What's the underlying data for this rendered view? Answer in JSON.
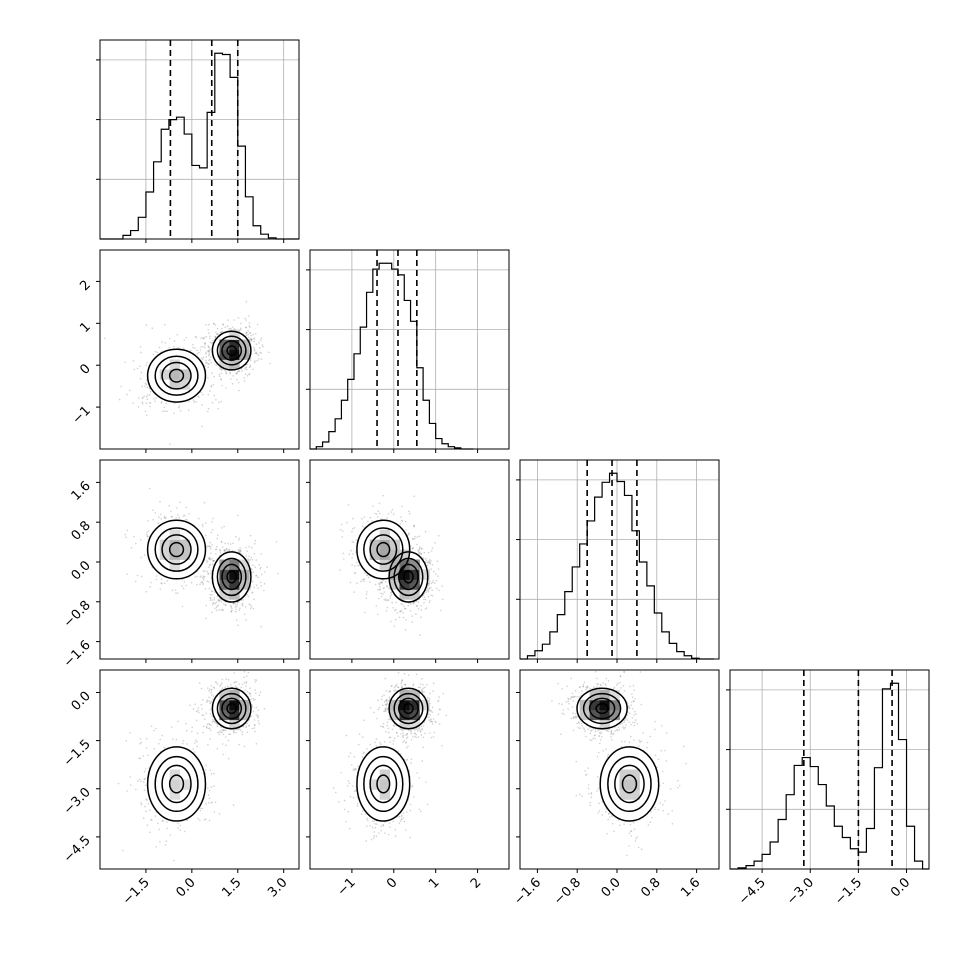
{
  "chart_data": {
    "type": "corner",
    "title": "",
    "parameters": 4,
    "axis_ranges": [
      [
        -3.0,
        3.5
      ],
      [
        -2.0,
        2.75
      ],
      [
        -1.95,
        2.05
      ],
      [
        -5.5,
        0.7
      ]
    ],
    "tick_values": [
      [
        -1.5,
        0.0,
        1.5,
        3.0
      ],
      [
        -1,
        0,
        1,
        2
      ],
      [
        -1.6,
        -0.8,
        0.0,
        0.8,
        1.6
      ],
      [
        -4.5,
        -3.0,
        -1.5,
        0.0
      ]
    ],
    "tick_labels": [
      [
        "−1.5",
        "0.0",
        "1.5",
        "3.0"
      ],
      [
        "−1",
        "0",
        "1",
        "2"
      ],
      [
        "−1.6",
        "−0.8",
        "0.0",
        "0.8",
        "1.6"
      ],
      [
        "−4.5",
        "−3.0",
        "−1.5",
        "0.0"
      ]
    ],
    "quantiles": [
      [
        -0.7,
        0.65,
        1.5
      ],
      [
        -0.4,
        0.1,
        0.55
      ],
      [
        -0.6,
        -0.1,
        0.4
      ],
      [
        -3.2,
        -1.5,
        -0.45
      ]
    ],
    "histograms": [
      {
        "parameter": 1,
        "bin_edges": [
          -3.0,
          -2.75,
          -2.5,
          -2.25,
          -2.0,
          -1.75,
          -1.5,
          -1.25,
          -1.0,
          -0.75,
          -0.5,
          -0.25,
          0.0,
          0.25,
          0.5,
          0.75,
          1.0,
          1.25,
          1.5,
          1.75,
          2.0,
          2.25,
          2.5,
          2.75,
          3.0,
          3.25,
          3.5
        ],
        "counts": [
          0,
          0,
          0,
          30,
          70,
          180,
          390,
          640,
          910,
          990,
          1010,
          870,
          610,
          590,
          1050,
          1540,
          1530,
          1340,
          770,
          350,
          110,
          40,
          10,
          0,
          0,
          0
        ]
      },
      {
        "parameter": 2,
        "bin_edges": [
          -2.0,
          -1.85,
          -1.7,
          -1.55,
          -1.4,
          -1.25,
          -1.1,
          -0.95,
          -0.8,
          -0.65,
          -0.5,
          -0.35,
          -0.2,
          -0.05,
          0.1,
          0.25,
          0.4,
          0.55,
          0.7,
          0.85,
          1.0,
          1.15,
          1.3,
          1.45,
          1.6,
          1.75,
          1.9
        ],
        "counts": [
          0,
          20,
          60,
          150,
          260,
          420,
          600,
          820,
          1050,
          1350,
          1550,
          1600,
          1600,
          1550,
          1500,
          1280,
          1100,
          700,
          420,
          220,
          90,
          45,
          20,
          10,
          0,
          0
        ]
      },
      {
        "parameter": 3,
        "bin_edges": [
          -1.95,
          -1.8,
          -1.65,
          -1.5,
          -1.35,
          -1.2,
          -1.05,
          -0.9,
          -0.75,
          -0.6,
          -0.45,
          -0.3,
          -0.15,
          0.0,
          0.15,
          0.3,
          0.45,
          0.6,
          0.75,
          0.9,
          1.05,
          1.2,
          1.35,
          1.5,
          1.65,
          1.8,
          1.95
        ],
        "counts": [
          0,
          40,
          100,
          180,
          330,
          540,
          820,
          1120,
          1400,
          1680,
          1970,
          2150,
          2260,
          2160,
          1990,
          1560,
          1180,
          890,
          560,
          330,
          190,
          90,
          40,
          10,
          0,
          0
        ]
      },
      {
        "parameter": 4,
        "bin_edges": [
          -5.5,
          -5.25,
          -5.0,
          -4.75,
          -4.5,
          -4.25,
          -4.0,
          -3.75,
          -3.5,
          -3.25,
          -3.0,
          -2.75,
          -2.5,
          -2.25,
          -2.0,
          -1.75,
          -1.5,
          -1.25,
          -1.0,
          -0.75,
          -0.5,
          -0.25,
          0.0,
          0.25,
          0.5,
          0.7
        ],
        "counts": [
          0,
          10,
          30,
          70,
          130,
          240,
          440,
          660,
          920,
          990,
          910,
          750,
          560,
          380,
          280,
          180,
          150,
          360,
          900,
          1600,
          1650,
          1150,
          380,
          70,
          0
        ]
      }
    ],
    "mixture_components": [
      {
        "weight": 0.4,
        "mean": [
          -0.5,
          -0.25,
          0.25,
          -2.85
        ],
        "sigma": [
          0.45,
          0.3,
          0.28,
          0.55
        ]
      },
      {
        "weight": 0.6,
        "mean": [
          1.3,
          0.35,
          -0.3,
          -0.5
        ],
        "sigma": [
          0.3,
          0.22,
          0.24,
          0.3
        ]
      }
    ],
    "contour_levels": [
      "0.5-sigma",
      "1.0-sigma",
      "1.5-sigma",
      "2.0-sigma"
    ],
    "colors": {
      "contour": "#000000",
      "density_max": "#000000",
      "density_min": "#ffffff",
      "samples": "#7a7a7a",
      "grid": "#b0b0b0"
    },
    "grid": true,
    "legend": "none"
  }
}
